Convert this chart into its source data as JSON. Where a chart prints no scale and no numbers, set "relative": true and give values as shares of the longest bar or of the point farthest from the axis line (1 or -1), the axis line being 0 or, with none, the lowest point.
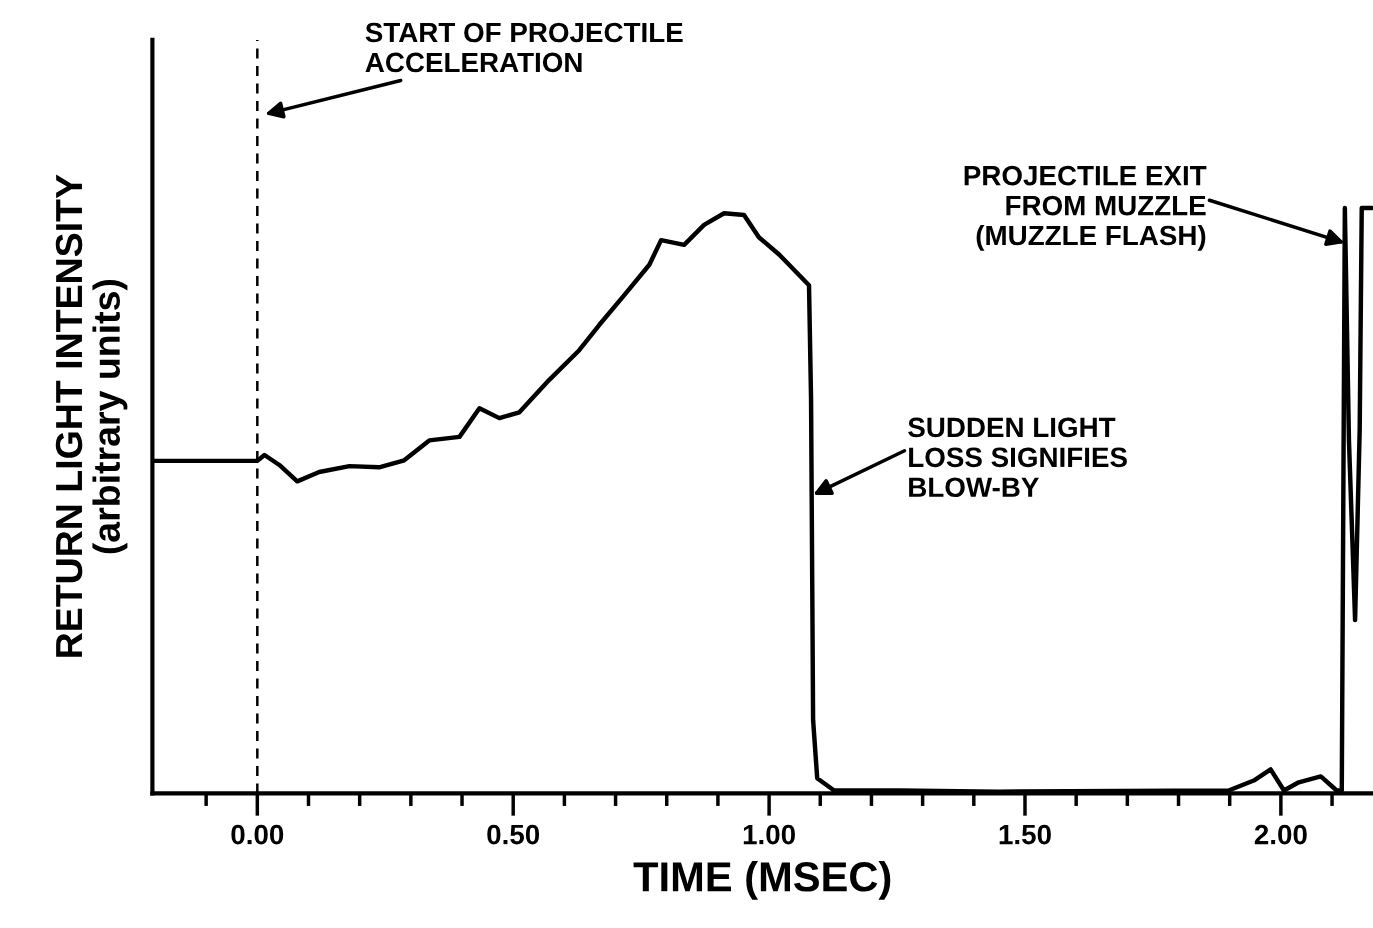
{
  "chart_data": {
    "type": "line",
    "xlabel": "TIME (MSEC)",
    "ylabel": "RETURN LIGHT INTENSITY\n(arbitrary units)",
    "relative": true,
    "x": [
      -0.205,
      0.0,
      0.014,
      0.043,
      0.078,
      0.121,
      0.18,
      0.238,
      0.287,
      0.336,
      0.395,
      0.434,
      0.473,
      0.512,
      0.57,
      0.629,
      0.668,
      0.717,
      0.766,
      0.789,
      0.834,
      0.873,
      0.912,
      0.951,
      0.98,
      1.02,
      1.059,
      1.078,
      1.082,
      1.086,
      1.094,
      1.127,
      1.254,
      1.449,
      1.898,
      1.947,
      1.98,
      2.006,
      2.035,
      2.078,
      2.109,
      2.119,
      2.125,
      2.133,
      2.145,
      2.154,
      2.158,
      2.178
    ],
    "series": [
      {
        "color": "#000000",
        "values": [
          0.568,
          0.568,
          0.578,
          0.561,
          0.533,
          0.549,
          0.559,
          0.557,
          0.569,
          0.603,
          0.609,
          0.658,
          0.641,
          0.651,
          0.706,
          0.757,
          0.8,
          0.851,
          0.903,
          0.945,
          0.937,
          0.971,
          0.991,
          0.988,
          0.95,
          0.92,
          0.885,
          0.868,
          0.672,
          0.125,
          0.026,
          0.005,
          0.005,
          0.003,
          0.005,
          0.022,
          0.041,
          0.005,
          0.019,
          0.029,
          0.005,
          0.005,
          1.0,
          0.603,
          0.296,
          0.621,
          1.0,
          1.0
        ]
      }
    ],
    "xlim": [
      -0.205,
      2.18
    ],
    "xticks": [
      {
        "value": -0.1,
        "label": null
      },
      {
        "value": 0.0,
        "label": "0.00"
      },
      {
        "value": 0.1,
        "label": null
      },
      {
        "value": 0.2,
        "label": null
      },
      {
        "value": 0.3,
        "label": null
      },
      {
        "value": 0.4,
        "label": null
      },
      {
        "value": 0.5,
        "label": "0.50"
      },
      {
        "value": 0.6,
        "label": null
      },
      {
        "value": 0.7,
        "label": null
      },
      {
        "value": 0.8,
        "label": null
      },
      {
        "value": 0.9,
        "label": null
      },
      {
        "value": 1.0,
        "label": "1.00"
      },
      {
        "value": 1.1,
        "label": null
      },
      {
        "value": 1.2,
        "label": null
      },
      {
        "value": 1.3,
        "label": null
      },
      {
        "value": 1.4,
        "label": null
      },
      {
        "value": 1.5,
        "label": "1.50"
      },
      {
        "value": 1.6,
        "label": null
      },
      {
        "value": 1.7,
        "label": null
      },
      {
        "value": 1.8,
        "label": null
      },
      {
        "value": 1.9,
        "label": null
      },
      {
        "value": 2.0,
        "label": "2.00"
      },
      {
        "value": 2.1,
        "label": null
      }
    ],
    "ref_lines": [
      {
        "axis": "x",
        "value": 0.0,
        "color": "#000000",
        "line_style": "dashed"
      }
    ],
    "annotations": [
      "START OF PROJECTILE\nACCELERATION",
      {
        "text": "SUDDEN LIGHT\nLOSS SIGNIFIES\nBLOW-BY",
        "x": 1.086,
        "y": 0.51
      },
      {
        "text": "PROJECTILE EXIT\nFROM MUZZLE\n(MUZZLE FLASH)",
        "x": 2.125,
        "y": 0.94
      }
    ]
  }
}
